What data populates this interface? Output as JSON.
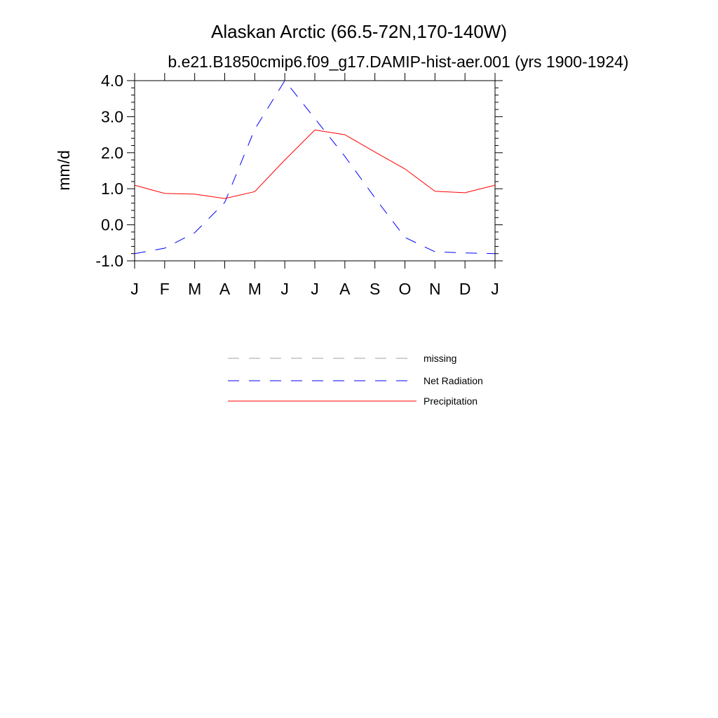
{
  "chart_data": {
    "type": "line",
    "title": "Alaskan Arctic (66.5-72N,170-140W)",
    "subtitle": "b.e21.B1850cmip6.f09_g17.DAMIP-hist-aer.001 (yrs 1900-1924)",
    "xlabel": "",
    "ylabel": "mm/d",
    "categories": [
      "J",
      "F",
      "M",
      "A",
      "M",
      "J",
      "J",
      "A",
      "S",
      "O",
      "N",
      "D",
      "J"
    ],
    "ylim": [
      -1.0,
      4.0
    ],
    "yticks": [
      "-1.0",
      "0.0",
      "1.0",
      "2.0",
      "3.0",
      "4.0"
    ],
    "grid": false,
    "legend_position": "bottom",
    "series": [
      {
        "name": "Net Radiation",
        "color": "#0000ff",
        "dash": "dashed",
        "values": [
          -0.8,
          -0.65,
          -0.22,
          0.62,
          2.65,
          4.0,
          2.95,
          1.9,
          0.75,
          -0.35,
          -0.75,
          -0.78,
          -0.8
        ]
      },
      {
        "name": "Precipitation",
        "color": "#ff0000",
        "dash": "solid",
        "values": [
          1.1,
          0.87,
          0.85,
          0.73,
          0.92,
          1.8,
          2.63,
          2.5,
          2.02,
          1.55,
          0.93,
          0.89,
          1.1
        ]
      }
    ],
    "legend": [
      {
        "label": "missing",
        "color": "#a0a0a0",
        "dash": "dashed"
      },
      {
        "label": "Net Radiation",
        "color": "#0000ff",
        "dash": "dashed"
      },
      {
        "label": "Precipitation",
        "color": "#ff0000",
        "dash": "solid"
      }
    ]
  }
}
